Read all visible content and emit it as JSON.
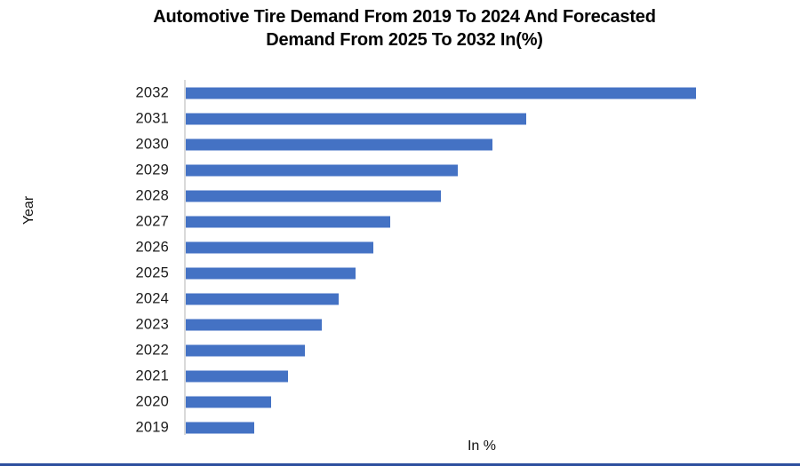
{
  "chart_data": {
    "type": "bar",
    "orientation": "horizontal",
    "title": "Automotive Tire Demand From 2019 To 2024 And Forecasted Demand From 2025 To 2032 In(%)",
    "title_line1": "Automotive Tire Demand From 2019 To 2024 And Forecasted",
    "title_line2": "Demand From 2025 To 2032 In(%)",
    "xlabel": "In %",
    "ylabel": "Year",
    "rows_top_to_bottom": true,
    "categories": [
      "2032",
      "2031",
      "2030",
      "2029",
      "2028",
      "2027",
      "2026",
      "2025",
      "2024",
      "2023",
      "2022",
      "2021",
      "2020",
      "2019"
    ],
    "values": [
      30,
      20,
      18,
      16,
      15,
      12,
      11,
      10,
      9,
      8,
      7,
      6,
      5,
      4
    ],
    "xlim": [
      0,
      35
    ],
    "gridlines": false,
    "legend": "none",
    "tick_labels_visible": true,
    "data_labels_visible": false,
    "colors": {
      "bar": "#4472C4",
      "axis_line": "#D9D9D9",
      "title_text": "#000000",
      "tick_text": "#1C1C1C",
      "footer_accent": "#2D4F9E"
    }
  }
}
